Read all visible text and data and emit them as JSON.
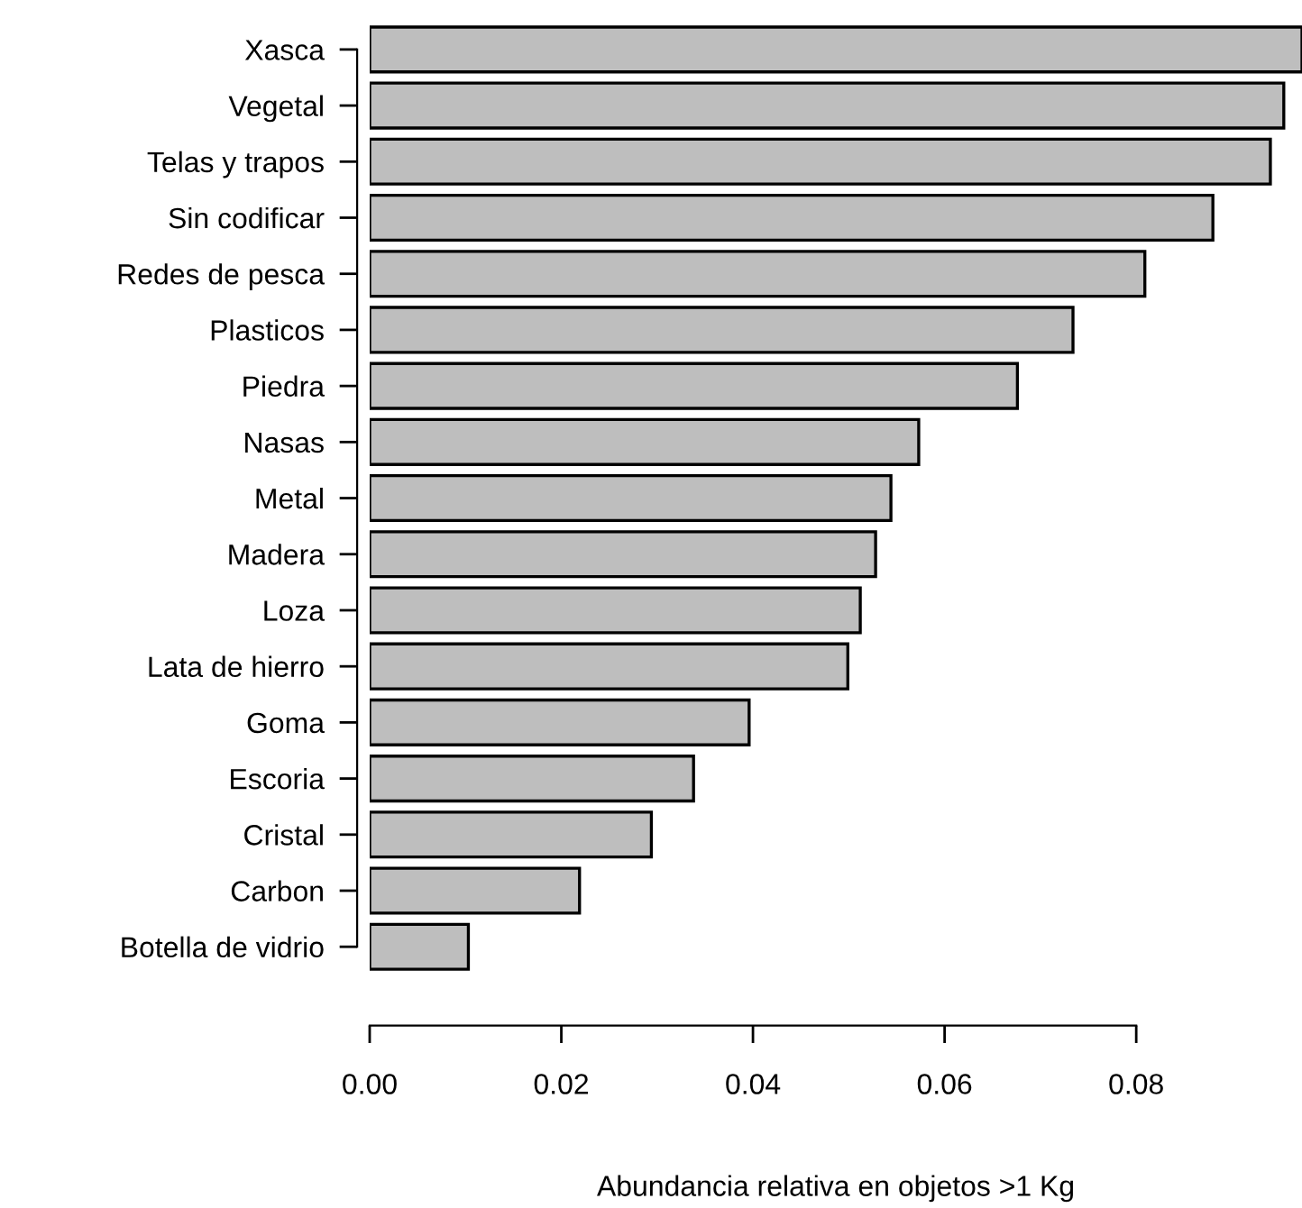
{
  "chart_data": {
    "type": "bar",
    "orientation": "horizontal",
    "categories": [
      "Xasca",
      "Vegetal",
      "Telas y trapos",
      "Sin codificar",
      "Redes de pesca",
      "Plasticos",
      "Piedra",
      "Nasas",
      "Metal",
      "Madera",
      "Loza",
      "Lata de hierro",
      "Goma",
      "Escoria",
      "Cristal",
      "Carbon",
      "Botella de vidrio"
    ],
    "values": [
      0.0973,
      0.0954,
      0.094,
      0.088,
      0.0809,
      0.0734,
      0.0676,
      0.0573,
      0.0544,
      0.0528,
      0.0512,
      0.0499,
      0.0396,
      0.0338,
      0.0294,
      0.0219,
      0.0103
    ],
    "color": "#bebebe",
    "xlim": [
      0,
      0.0973
    ],
    "xticks": [
      {
        "value": 0,
        "label": "0.00"
      },
      {
        "value": 0.02,
        "label": "0.02"
      },
      {
        "value": 0.04,
        "label": "0.04"
      },
      {
        "value": 0.06,
        "label": "0.06"
      },
      {
        "value": 0.08,
        "label": "0.08"
      }
    ],
    "xlabel": "Abundancia relativa en objetos >1 Kg",
    "grid": false
  }
}
